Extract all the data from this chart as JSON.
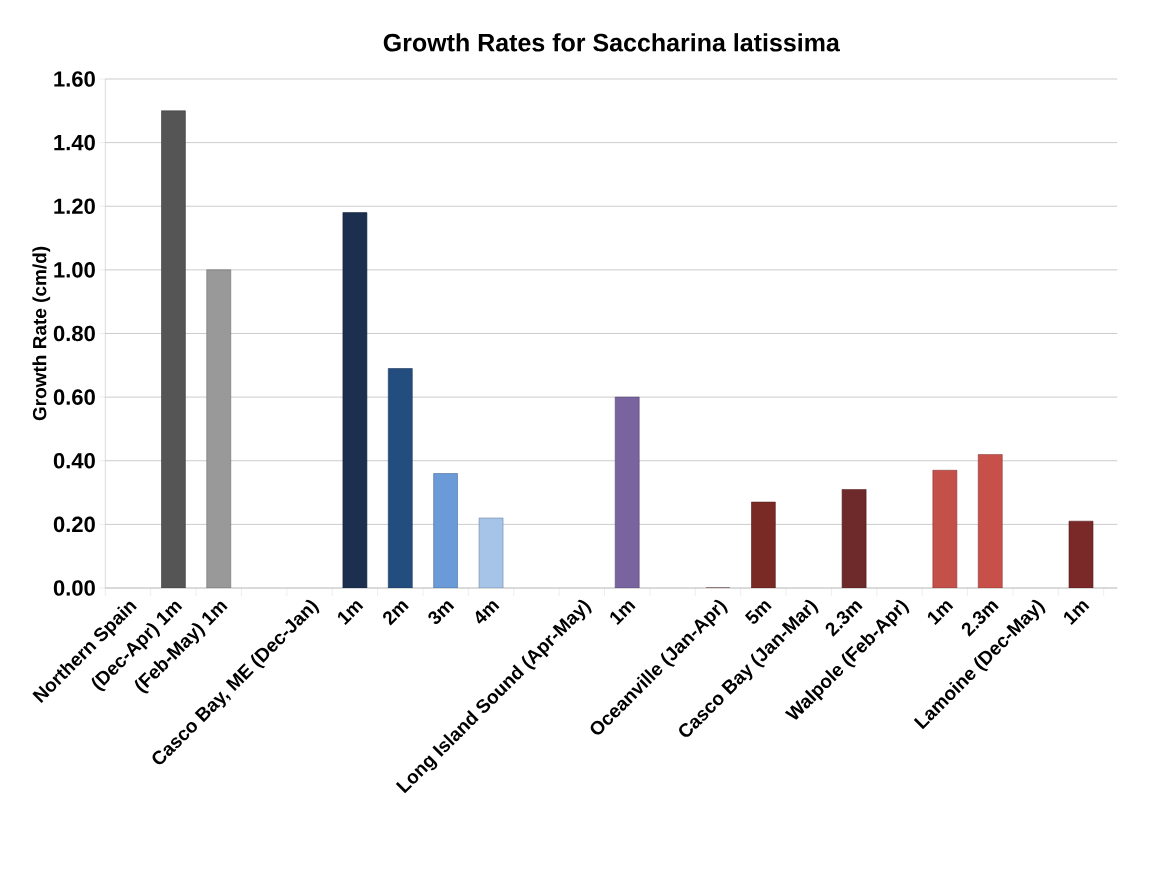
{
  "chart_data": {
    "type": "bar",
    "title": "Growth Rates for Saccharina latissima",
    "ylabel": "Growth Rate (cm/d)",
    "categories": [
      "Northern Spain",
      "(Dec-Apr) 1m",
      "(Feb-May) 1m",
      null,
      "Casco Bay, ME (Dec-Jan)",
      "1m",
      "2m",
      "3m",
      "4m",
      null,
      "Long Island Sound (Apr-May)",
      "1m",
      null,
      "Oceanville (Jan-Apr)",
      "5m",
      "Casco Bay (Jan-Mar)",
      "2.3m",
      "Walpole (Feb-Apr)",
      "1m",
      "2.3m",
      "Lamoine (Dec-May)",
      "1m"
    ],
    "values": [
      null,
      1.5,
      1.0,
      null,
      null,
      1.18,
      0.69,
      0.36,
      0.22,
      null,
      null,
      0.6,
      null,
      0,
      0.27,
      null,
      0.31,
      null,
      0.37,
      0.42,
      null,
      0.21
    ],
    "colors": [
      "#555555",
      "#555555",
      "#999999",
      "#555555",
      "#555555",
      "#1c2f4f",
      "#244d7f",
      "#6a9ad8",
      "#a6c3e8",
      "#555555",
      "#555555",
      "#7a64a0",
      "#555555",
      "#6b2a2a",
      "#7a2a25",
      "#555555",
      "#6e2a2a",
      "#555555",
      "#c4504a",
      "#c8504a",
      "#555555",
      "#7a2828"
    ],
    "ylim": [
      0,
      1.6
    ],
    "yticks": [
      {
        "value": 0,
        "label": "0.00"
      },
      {
        "value": 0.2,
        "label": "0.20"
      },
      {
        "value": 0.4,
        "label": "0.40"
      },
      {
        "value": 0.6,
        "label": "0.60"
      },
      {
        "value": 0.8,
        "label": "0.80"
      },
      {
        "value": 1.0,
        "label": "1.00"
      },
      {
        "value": 1.2,
        "label": "1.20"
      },
      {
        "value": 1.4,
        "label": "1.40"
      },
      {
        "value": 1.6,
        "label": "1.60"
      }
    ],
    "grid": "y",
    "legend": false
  }
}
